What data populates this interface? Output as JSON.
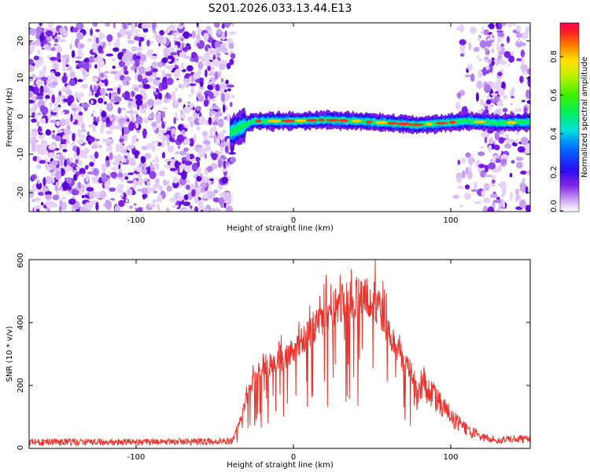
{
  "title": "S201.2026.033.13.44.E13",
  "top_plot": {
    "xlabel": "Height of straight line (km)",
    "ylabel": "Frequency (Hz)",
    "colorbar_label": "Normalized spectral amplitude",
    "x_tick_labels": [
      "-100",
      "0",
      "100"
    ],
    "y_tick_labels": [
      "20",
      "10",
      "0",
      "-10",
      "-20"
    ],
    "colorbar_tick_labels": [
      "0.8",
      "0.6",
      "0.4",
      "0.2",
      "0.0"
    ]
  },
  "bottom_plot": {
    "xlabel": "Height of straight line (km)",
    "ylabel": "SNR (10 * v/v)",
    "x_tick_labels": [
      "-100",
      "0",
      "100"
    ],
    "y_tick_labels": [
      "600",
      "400",
      "200",
      "0"
    ]
  },
  "colors": {
    "snr_line": "#e8352e",
    "noise": "#7a1fe6"
  },
  "chart_data": [
    {
      "type": "heatmap",
      "title": "S201.2026.033.13.44.E13",
      "xlabel": "Height of straight line (km)",
      "ylabel": "Frequency (Hz)",
      "xlim": [
        -167,
        150
      ],
      "ylim": [
        -24.5,
        24.5
      ],
      "colorbar": {
        "label": "Normalized spectral amplitude",
        "range": [
          0,
          0.95
        ],
        "ticks": [
          0.0,
          0.2,
          0.4,
          0.6,
          0.8
        ]
      },
      "noise_regions": [
        {
          "x": [
            -167,
            -38
          ],
          "amplitude": 0.1
        },
        {
          "x": [
            103,
            150
          ],
          "amplitude": 0.05
        }
      ],
      "signal_band": {
        "x": [
          -40,
          150
        ],
        "center_frequency_hz": [
          [
            -40,
            -4
          ],
          [
            -33,
            -2.5
          ],
          [
            -25,
            -1
          ],
          [
            -10,
            -1
          ],
          [
            0,
            -1
          ],
          [
            20,
            -0.7
          ],
          [
            40,
            -1
          ],
          [
            60,
            -1.5
          ],
          [
            80,
            -2
          ],
          [
            95,
            -1.5
          ],
          [
            110,
            -1
          ],
          [
            130,
            -1.5
          ],
          [
            150,
            -1.2
          ]
        ],
        "peak_amplitude": 0.95
      }
    },
    {
      "type": "line",
      "title": "",
      "xlabel": "Height of straight line (km)",
      "ylabel": "SNR (10 * v/v)",
      "xlim": [
        -167,
        150
      ],
      "ylim": [
        0,
        600
      ],
      "series": [
        {
          "name": "SNR",
          "x": [
            -167,
            -100,
            -50,
            -38,
            -32,
            -28,
            -25,
            -20,
            -10,
            0,
            10,
            20,
            30,
            40,
            50,
            55,
            60,
            70,
            80,
            90,
            100,
            110,
            120,
            130,
            140,
            150
          ],
          "y": [
            20,
            20,
            22,
            25,
            120,
            200,
            230,
            260,
            300,
            330,
            390,
            460,
            500,
            520,
            515,
            480,
            400,
            300,
            220,
            160,
            100,
            60,
            35,
            25,
            30,
            30
          ]
        }
      ]
    }
  ]
}
